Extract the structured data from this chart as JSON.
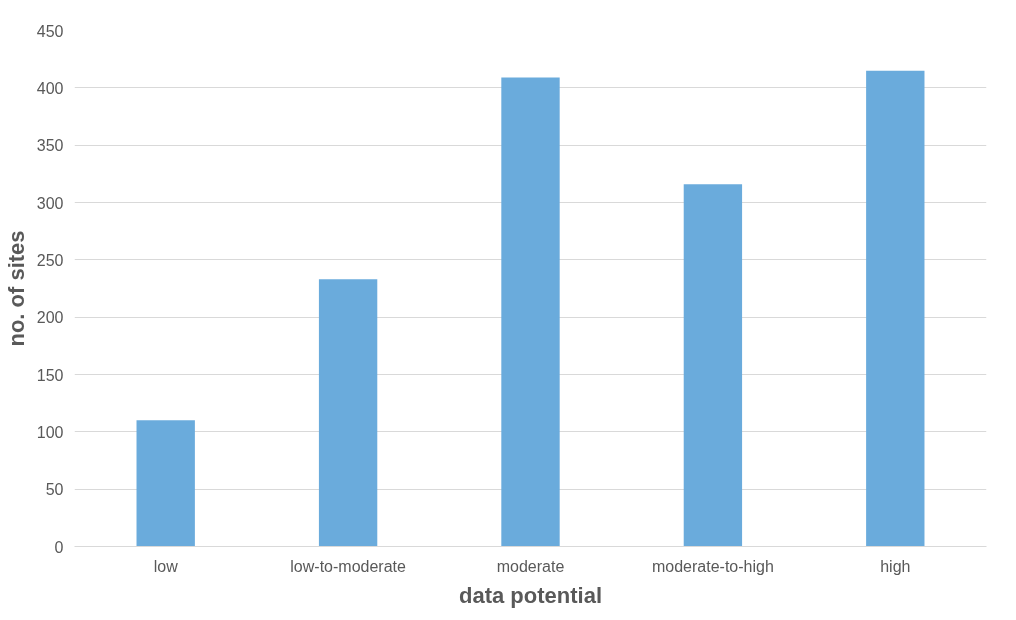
{
  "chart_data": {
    "type": "bar",
    "xlabel": "data potential",
    "ylabel": "no. of sites",
    "categories": [
      "low",
      "low-to-moderate",
      "moderate",
      "moderate-to-high",
      "high"
    ],
    "values": [
      110,
      233,
      409,
      316,
      415
    ],
    "color": "#6aabdc",
    "ylim": [
      0,
      450
    ],
    "yticks": [
      0,
      50,
      100,
      150,
      200,
      250,
      300,
      350,
      400,
      450
    ],
    "grid": "y"
  }
}
